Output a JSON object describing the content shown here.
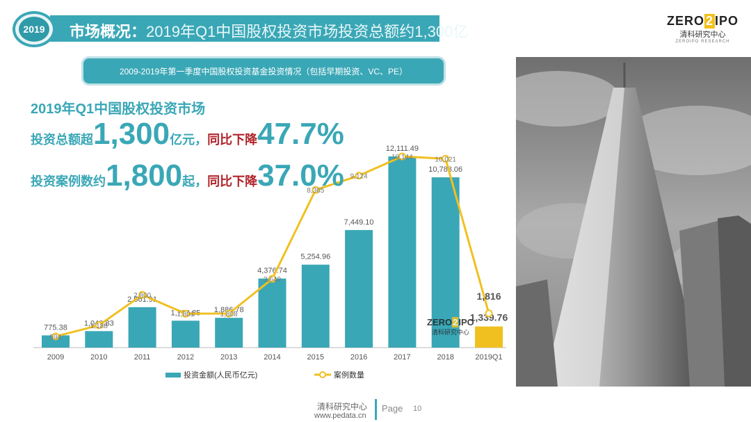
{
  "header": {
    "year_badge": "2019",
    "title_prefix": "市场概况：",
    "title_main": "2019年Q1中国股权投资市场投资总额约1,300亿"
  },
  "logo": {
    "text_left": "ZERO",
    "text_box": "2",
    "text_right": "IPO",
    "cn": "清科研究中心",
    "sub": "ZEROIPO RESEARCH"
  },
  "subtitle": "2009-2019年第一季度中国股权投资基金投资情况（包括早期投资、VC、PE）",
  "headline": {
    "line1": "2019年Q1中国股权投资市场",
    "line2_a": "投资总额超",
    "line2_num": "1,300",
    "line2_b": "亿元，",
    "line2_c": "同比下降",
    "line2_pct": "47.7%",
    "line3_a": "投资案例数约",
    "line3_num": "1,800",
    "line3_b": "起，",
    "line3_c": "同比下降",
    "line3_pct": "37.0%"
  },
  "colors": {
    "teal": "#3aa7b6",
    "gold": "#f0c020",
    "red": "#b0242b"
  },
  "chart_data": {
    "type": "bar",
    "categories": [
      "2009",
      "2010",
      "2011",
      "2012",
      "2013",
      "2014",
      "2015",
      "2016",
      "2017",
      "2018",
      "2019Q1"
    ],
    "series": [
      {
        "name": "投资金额(人民币亿元)",
        "kind": "bar",
        "values": [
          775.38,
          1043.83,
          2561.91,
          1704.85,
          1886.78,
          4376.74,
          5254.96,
          7449.1,
          12111.49,
          10788.06,
          1339.76
        ],
        "labels": [
          "775.38",
          "1,043.83",
          "2,561.91",
          "1,704.85",
          "1,886.78",
          "4,376.74",
          "5,254.96",
          "7,449.10",
          "12,111.49",
          "10,788.06",
          "1,339.76"
        ]
      },
      {
        "name": "案例数量",
        "kind": "line",
        "values": [
          594,
          1188,
          2800,
          1801,
          1808,
          3649,
          8365,
          9124,
          10144,
          10021,
          1816
        ],
        "labels": [
          "594",
          "1,188",
          "2,800",
          "1,801",
          "1,808",
          "3,649",
          "8,365",
          "9,124",
          "10,144",
          "10,021",
          "1,816"
        ]
      }
    ],
    "highlight_category": "2019Q1"
  },
  "watermark": {
    "left": "ZERO",
    "box": "2",
    "right": "IPO",
    "cn": "清科研究中心"
  },
  "footer": {
    "cn": "清科研究中心",
    "url": "www.pedata.cn",
    "page_label": "Page",
    "page_num": "10"
  }
}
